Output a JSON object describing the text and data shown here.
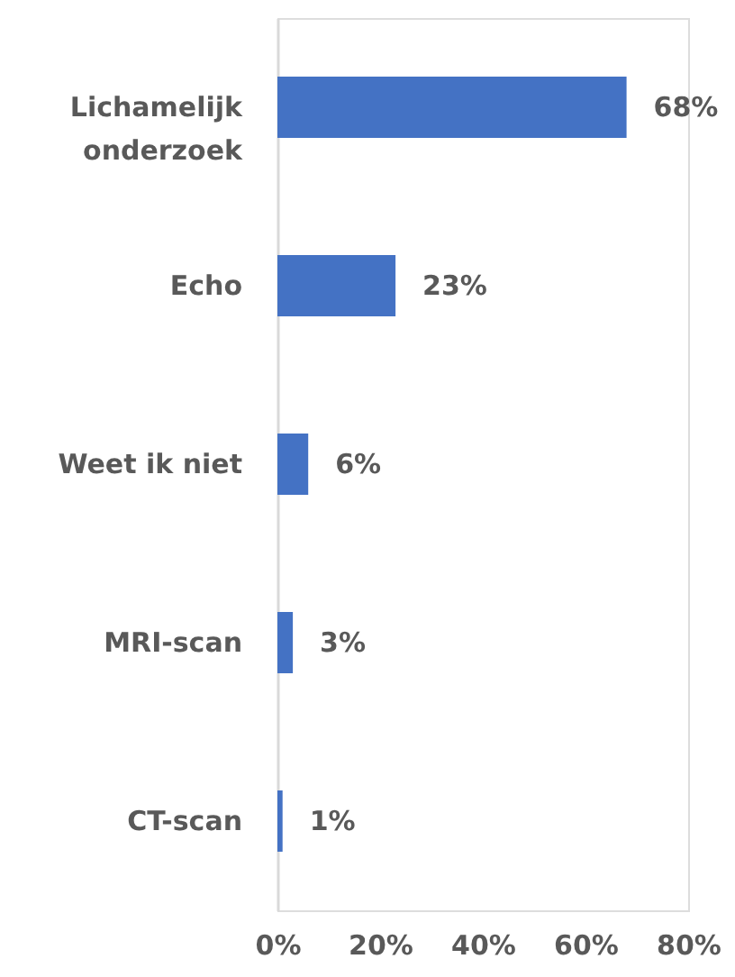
{
  "chart_data": {
    "type": "bar",
    "orientation": "horizontal",
    "categories": [
      "Lichamelijk onderzoek",
      "Echo",
      "Weet ik niet",
      "MRI-scan",
      "CT-scan"
    ],
    "values": [
      68,
      23,
      6,
      3,
      1
    ],
    "value_labels": [
      "68%",
      "23%",
      "6%",
      "3%",
      "1%"
    ],
    "color": "#4472c4",
    "xlim": [
      0,
      80
    ],
    "xticks": [
      {
        "value": 0,
        "label": "0%"
      },
      {
        "value": 20,
        "label": "20%"
      },
      {
        "value": 40,
        "label": "40%"
      },
      {
        "value": 60,
        "label": "60%"
      },
      {
        "value": 80,
        "label": "80%"
      }
    ],
    "grid": false,
    "legend": false
  }
}
